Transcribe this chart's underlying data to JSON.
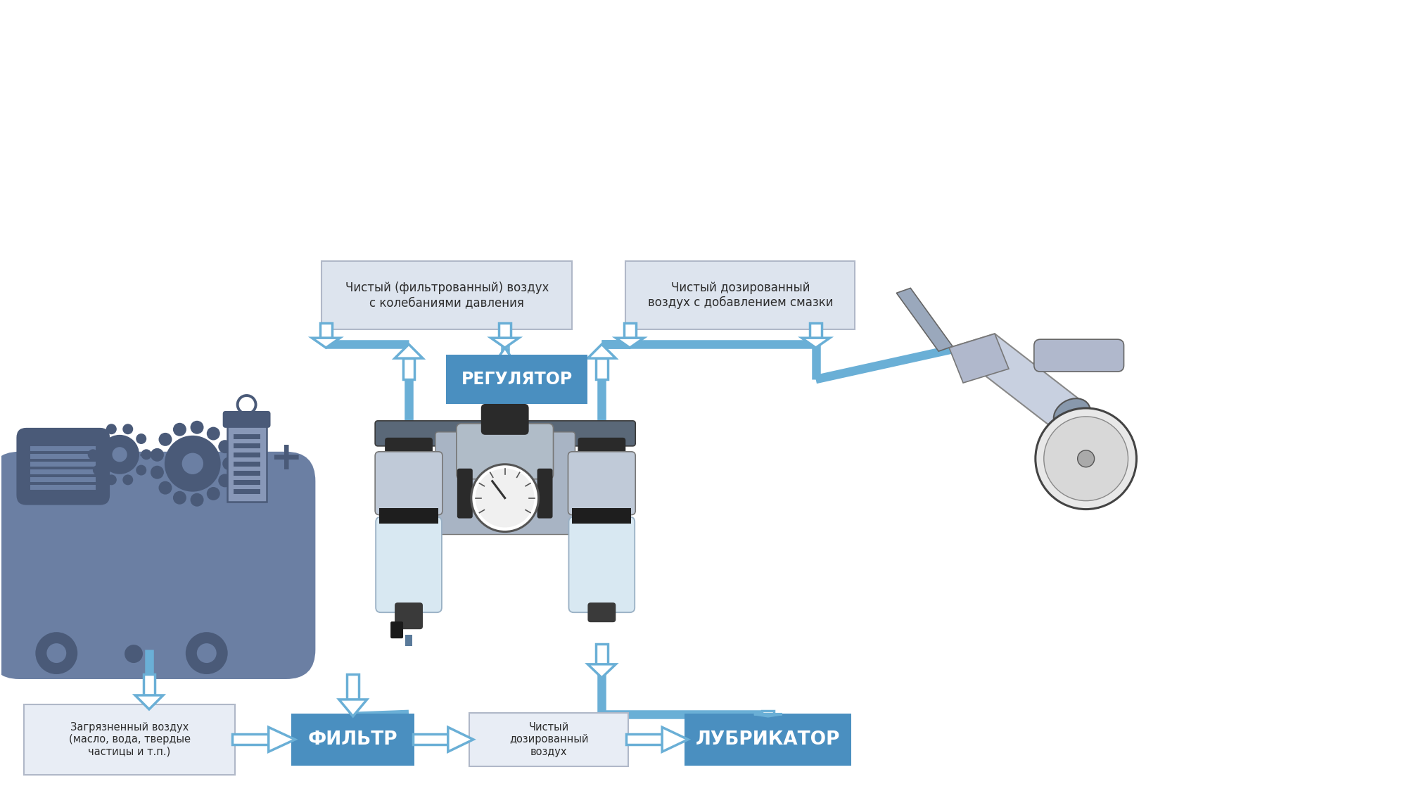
{
  "bg_color": "#ffffff",
  "blue_box_color": "#4a8fc0",
  "arrow_color": "#6aafd6",
  "compressor_color": "#6b7fa3",
  "compressor_dark": "#4a5a78",
  "text_color": "#2c2c2c",
  "box_border_color": "#b0b8c8",
  "box_fill_color": "#e8edf5",
  "title_filtr": "ФИЛЬТР",
  "title_regulator": "РЕГУЛЯТОР",
  "title_lubricator": "ЛУБРИКАТОР",
  "label_dirty": "Загрязненный воздух\n(масло, вода, твердые\nчастицы и т.п.)",
  "label_clean_filtered": "Чистый (фильтрованный) воздух\nс колебаниями давления",
  "label_clean_dosed": "Чистый дозированный\nвоздух с добавлением смазки",
  "label_clean_output": "Чистый\nдозированный\nвоздух",
  "figsize": [
    20,
    11.24
  ],
  "dpi": 100
}
